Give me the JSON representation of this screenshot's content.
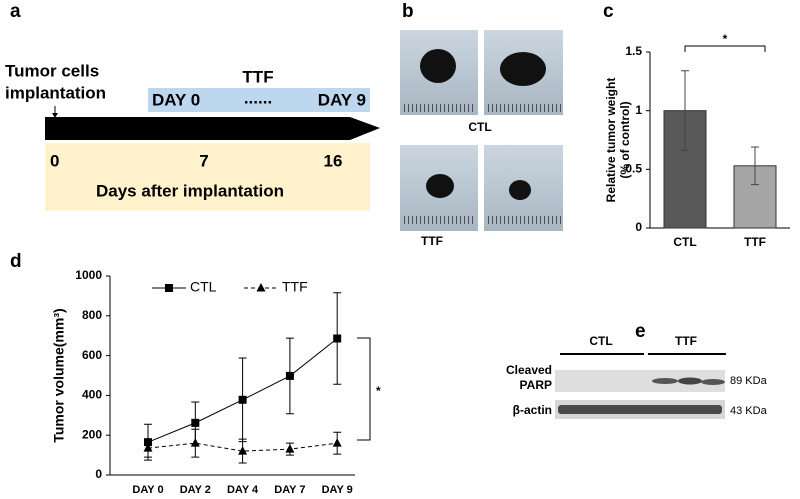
{
  "figure": {
    "panel_a": {
      "letter": "a",
      "event_label": [
        "Tumor cells",
        "implantation"
      ],
      "treatment": "TTF",
      "start": "DAY 0",
      "dots": "......",
      "end": "DAY 9",
      "days": [
        0,
        7,
        16
      ],
      "axis_label": "Days after implantation"
    },
    "panel_b": {
      "letter": "b",
      "groups": [
        "CTL",
        "TTF"
      ]
    },
    "panel_e": {
      "letter": "e",
      "groups": [
        "CTL",
        "TTF"
      ],
      "bands": [
        {
          "name": [
            "Cleaved",
            "PARP"
          ],
          "size": "89 KDa"
        },
        {
          "name": [
            "β-actin"
          ],
          "size": "43 KDa"
        }
      ]
    }
  },
  "chart_data": [
    {
      "type": "bar",
      "panel": "c",
      "ylabel": [
        "Relative tumor weight",
        "(% of control)"
      ],
      "categories": [
        "CTL",
        "TTF"
      ],
      "values": [
        1.0,
        0.53
      ],
      "errors": [
        0.34,
        0.16
      ],
      "colors": [
        "#595959",
        "#a6a6a6"
      ],
      "ylim": [
        0,
        1.5
      ],
      "yticks": [
        0,
        0.5,
        1,
        1.5
      ],
      "annotation": "*"
    },
    {
      "type": "line",
      "panel": "d",
      "ylabel": "Tumor volume(mm³)",
      "categories": [
        "DAY 0",
        "DAY 2",
        "DAY 4",
        "DAY 7",
        "DAY 9"
      ],
      "series": [
        {
          "name": "CTL",
          "color": "#000000",
          "marker": "square",
          "dashed": false,
          "values": [
            165,
            262,
            378,
            498,
            686
          ],
          "errors": [
            90,
            105,
            210,
            190,
            230
          ]
        },
        {
          "name": "TTF",
          "color": "#000000",
          "marker": "triangle",
          "dashed": true,
          "values": [
            135,
            160,
            120,
            130,
            160
          ],
          "errors": [
            45,
            70,
            60,
            30,
            55
          ]
        }
      ],
      "ylim": [
        0,
        1000
      ],
      "yticks": [
        0,
        200,
        400,
        600,
        800,
        1000
      ],
      "legend": "top",
      "annotation": "*"
    }
  ]
}
